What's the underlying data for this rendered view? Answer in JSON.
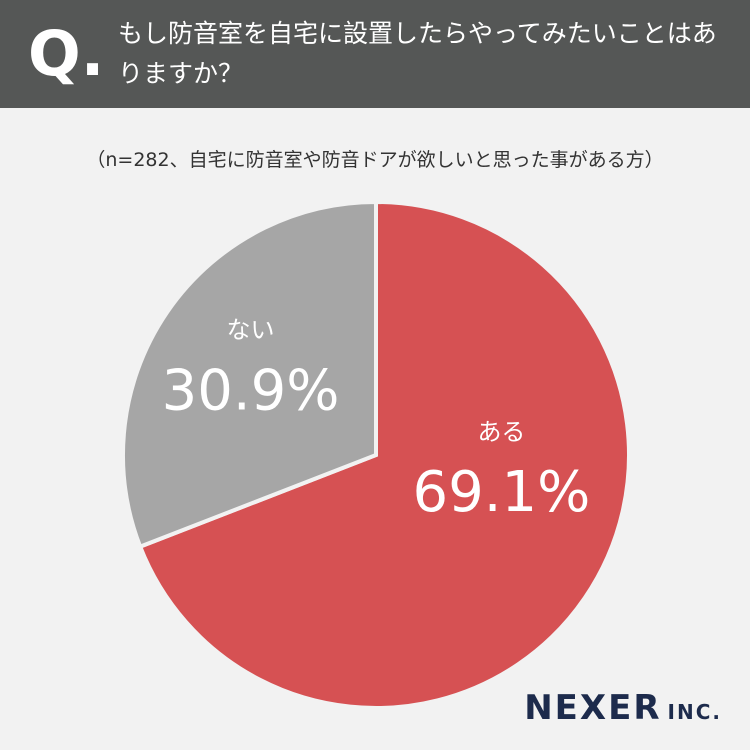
{
  "chart_data": {
    "type": "pie",
    "logo": "Q.",
    "title": "もし防音室を自宅に設置したらやってみたいことはありますか？",
    "subtitle": "（n=282、自宅に防音室や防音ドアが欲しいと思った事がある方）",
    "categories": [
      "ある",
      "ない"
    ],
    "values": [
      69.1,
      30.9
    ],
    "value_labels": [
      "69.1%",
      "30.9%"
    ],
    "colors": [
      "#d65153",
      "#a6a6a6"
    ],
    "brand": "NEXER",
    "brand_suffix": "INC."
  }
}
